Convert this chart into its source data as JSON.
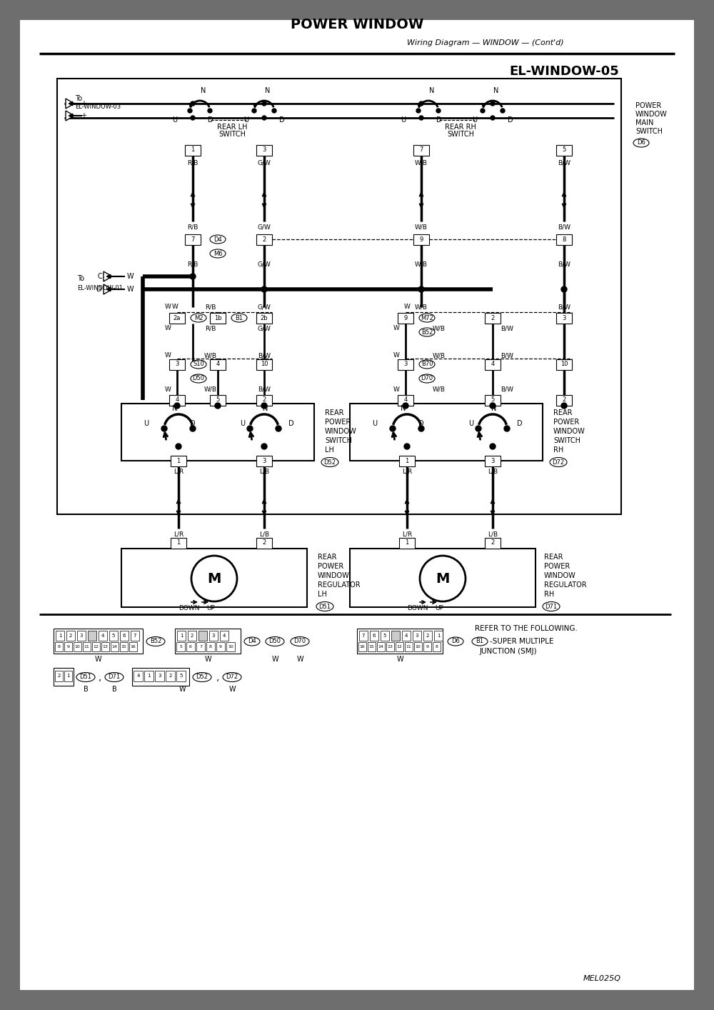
{
  "title": "POWER WINDOW",
  "subtitle": "Wiring Diagram — WINDOW — (Cont'd)",
  "diagram_id": "EL-WINDOW-05",
  "watermark": "MEL025Q",
  "bg_color": "#ffffff",
  "page_bg": "#6e6e6e"
}
